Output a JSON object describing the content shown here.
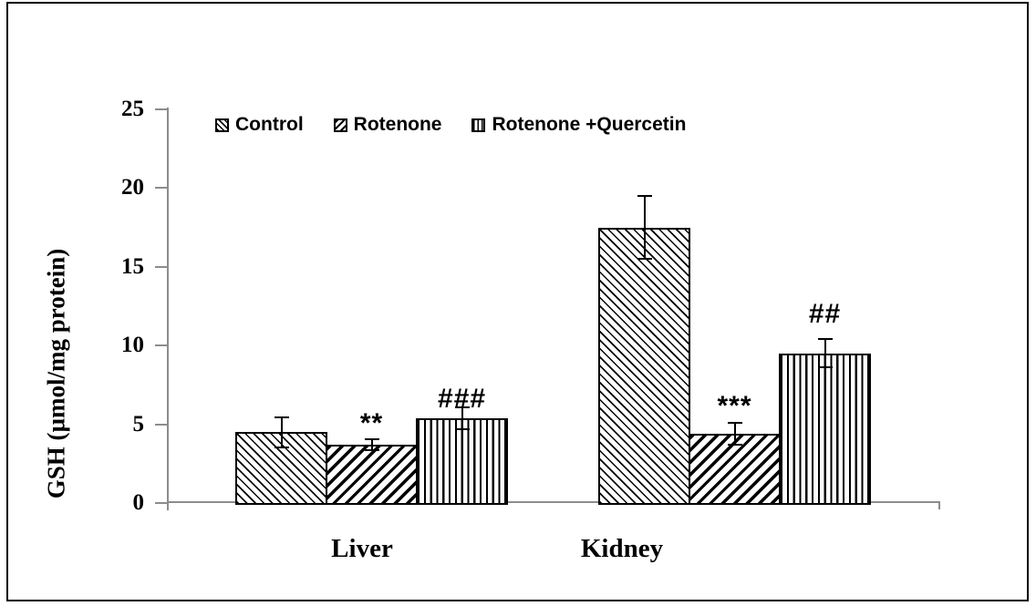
{
  "chart_data": {
    "type": "bar",
    "title": "",
    "xlabel": "",
    "ylabel": "GSH (µmol/mg protein)",
    "categories": [
      "Liver",
      "Kidney"
    ],
    "series": [
      {
        "name": "Control",
        "hatch": "diagonal-down",
        "values": [
          4.5,
          17.5
        ],
        "errors": [
          0.95,
          2.0
        ],
        "marks": [
          "",
          ""
        ]
      },
      {
        "name": "Rotenone",
        "hatch": "diagonal-up",
        "values": [
          3.7,
          4.4
        ],
        "errors": [
          0.35,
          0.7
        ],
        "marks": [
          "**",
          "***"
        ]
      },
      {
        "name": "Rotenone +Quercetin",
        "hatch": "vertical",
        "values": [
          5.4,
          9.5
        ],
        "errors": [
          0.7,
          0.9
        ],
        "marks": [
          "###",
          "##"
        ]
      }
    ],
    "ylim": [
      0,
      25
    ],
    "yticks": [
      0,
      5,
      10,
      15,
      20,
      25
    ],
    "grid": false,
    "legend_position": "top-inside",
    "error_bars": "both-caps"
  },
  "colors": {
    "ink": "#000000",
    "axis": "#8c8c8c",
    "background": "#ffffff"
  }
}
